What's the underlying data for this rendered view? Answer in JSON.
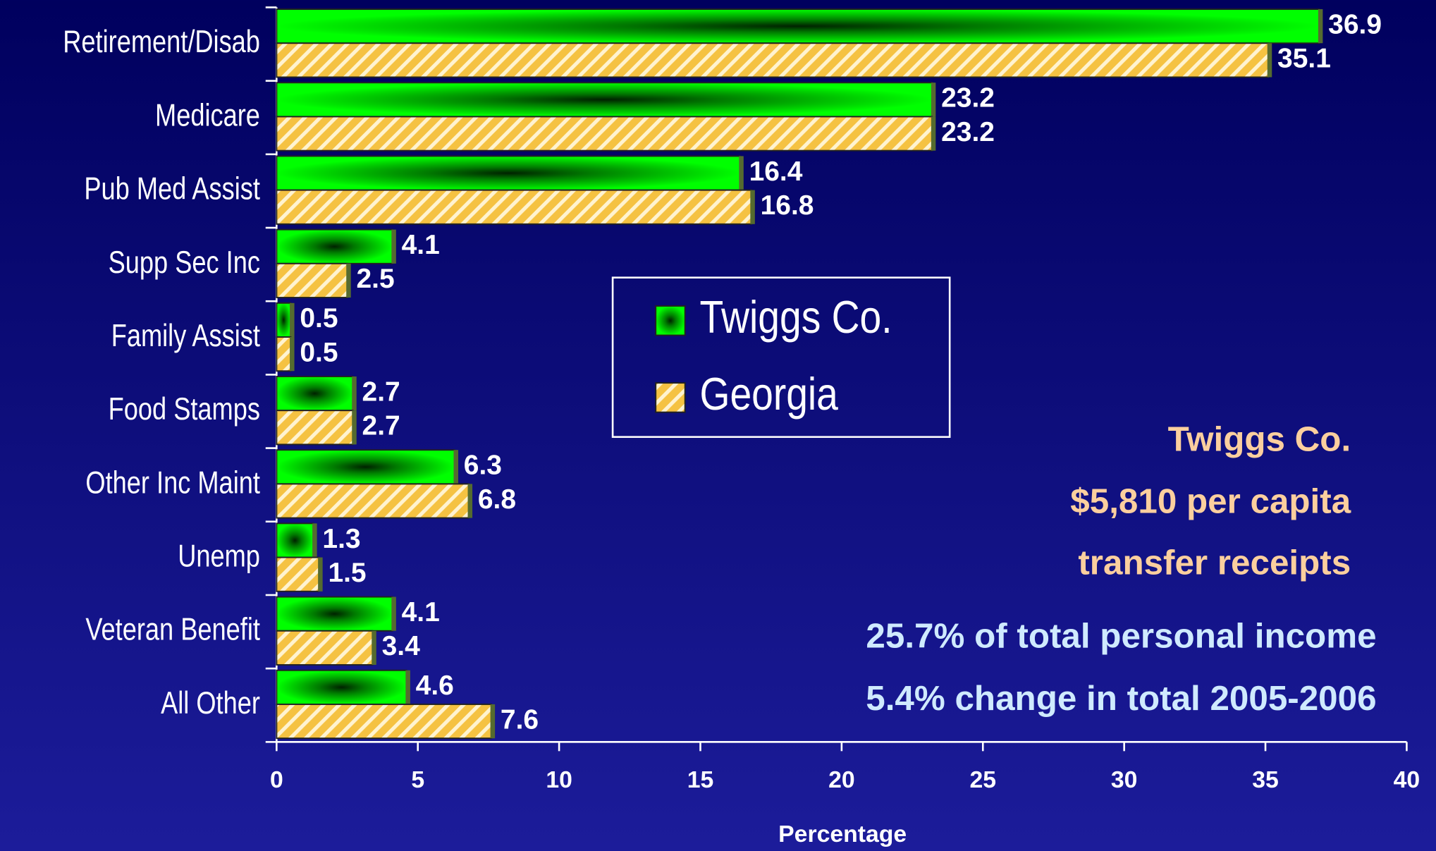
{
  "chart_data": {
    "type": "bar",
    "orientation": "horizontal",
    "categories": [
      "Retirement/Disab",
      "Medicare",
      "Pub Med Assist",
      "Supp Sec Inc",
      "Family Assist",
      "Food Stamps",
      "Other Inc Maint",
      "Unemp",
      "Veteran Benefit",
      "All Other"
    ],
    "series": [
      {
        "name": "Twiggs Co.",
        "color": "#00ee00",
        "values": [
          36.9,
          23.2,
          16.4,
          4.1,
          0.5,
          2.7,
          6.3,
          1.3,
          4.1,
          4.6
        ]
      },
      {
        "name": "Georgia",
        "color": "#f5c242",
        "values": [
          35.1,
          23.2,
          16.8,
          2.5,
          0.5,
          2.7,
          6.8,
          1.5,
          3.4,
          7.6
        ]
      }
    ],
    "xlabel": "Percentage",
    "xlim": [
      0,
      40
    ],
    "xticks": [
      0,
      5,
      10,
      15,
      20,
      25,
      30,
      35,
      40
    ],
    "annotations": [
      "Twiggs Co.",
      "$5,810  per capita",
      "transfer receipts",
      "25.7% of total personal income",
      "5.4% change in total 2005-2006"
    ]
  }
}
